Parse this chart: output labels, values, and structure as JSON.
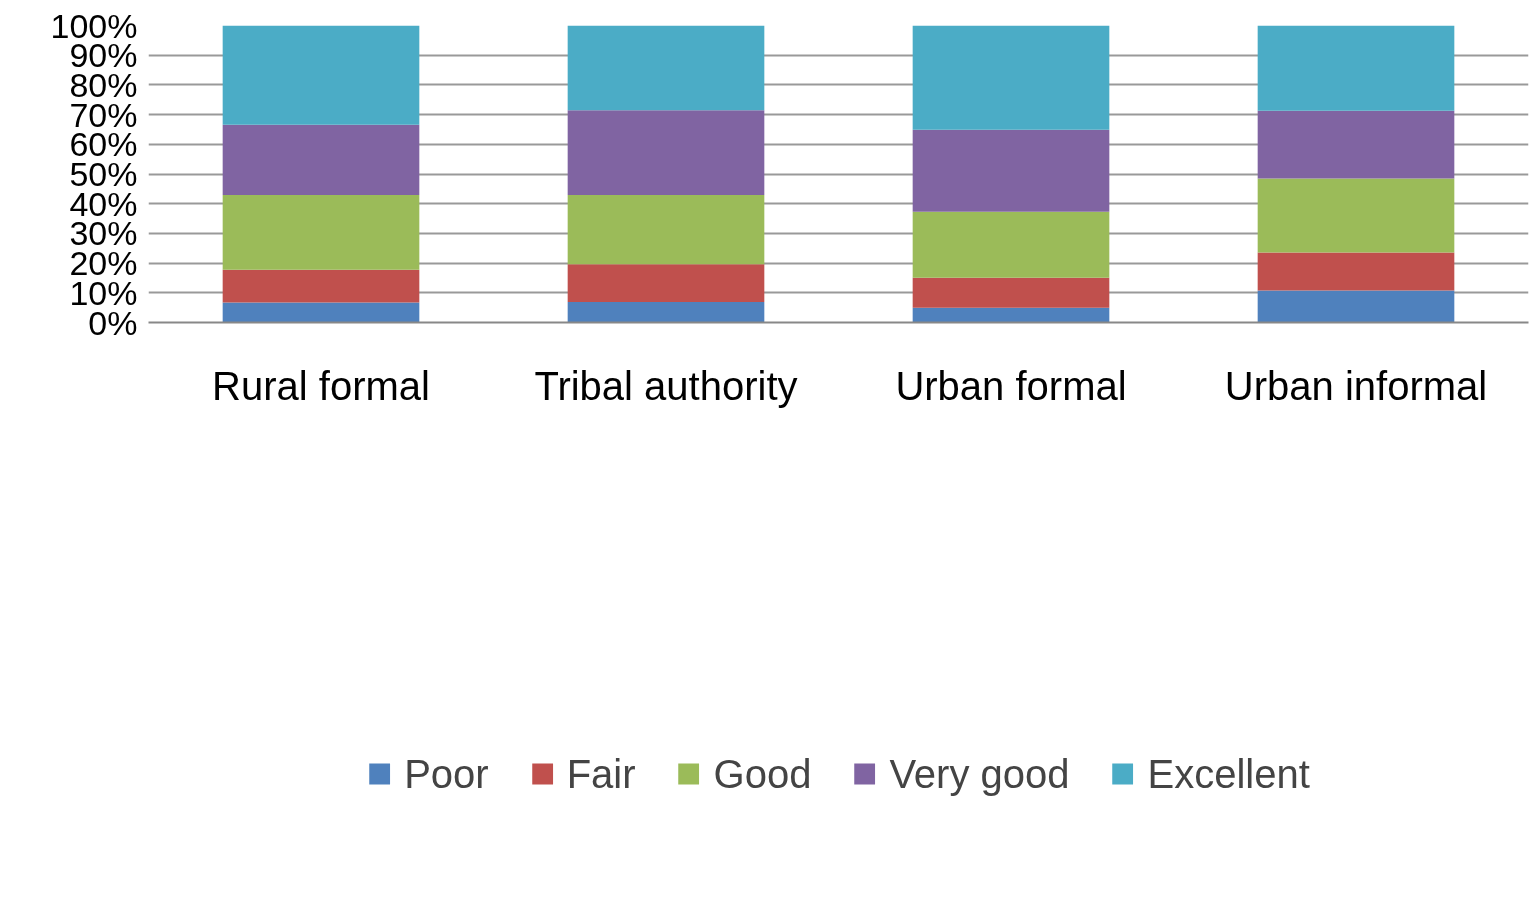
{
  "chart_data": {
    "type": "bar",
    "stacked": true,
    "categories": [
      "Rural formal",
      "Tribal authority",
      "Urban formal",
      "Urban informal"
    ],
    "series": [
      {
        "name": "Poor",
        "color": "#4f81bd",
        "values": [
          6.7,
          6.9,
          5.0,
          10.8
        ]
      },
      {
        "name": "Fair",
        "color": "#c0504d",
        "values": [
          11.1,
          12.7,
          10.1,
          12.8
        ]
      },
      {
        "name": "Good",
        "color": "#9bbb59",
        "values": [
          25.1,
          23.3,
          22.2,
          24.9
        ]
      },
      {
        "name": "Very good",
        "color": "#8064a2",
        "values": [
          23.7,
          28.6,
          27.6,
          22.8
        ]
      },
      {
        "name": "Excellent",
        "color": "#4bacc6",
        "values": [
          33.4,
          28.5,
          35.1,
          28.7
        ]
      }
    ],
    "ylim": [
      0,
      100
    ],
    "yticks": [
      {
        "value": 0,
        "label": "0%"
      },
      {
        "value": 10,
        "label": "10%"
      },
      {
        "value": 20,
        "label": "20%"
      },
      {
        "value": 30,
        "label": "30%"
      },
      {
        "value": 40,
        "label": "40%"
      },
      {
        "value": 50,
        "label": "50%"
      },
      {
        "value": 60,
        "label": "60%"
      },
      {
        "value": 70,
        "label": "70%"
      },
      {
        "value": 80,
        "label": "80%"
      },
      {
        "value": 90,
        "label": "90%"
      },
      {
        "value": 100,
        "label": "100%"
      }
    ],
    "grid": "y",
    "legend": "bottom"
  }
}
